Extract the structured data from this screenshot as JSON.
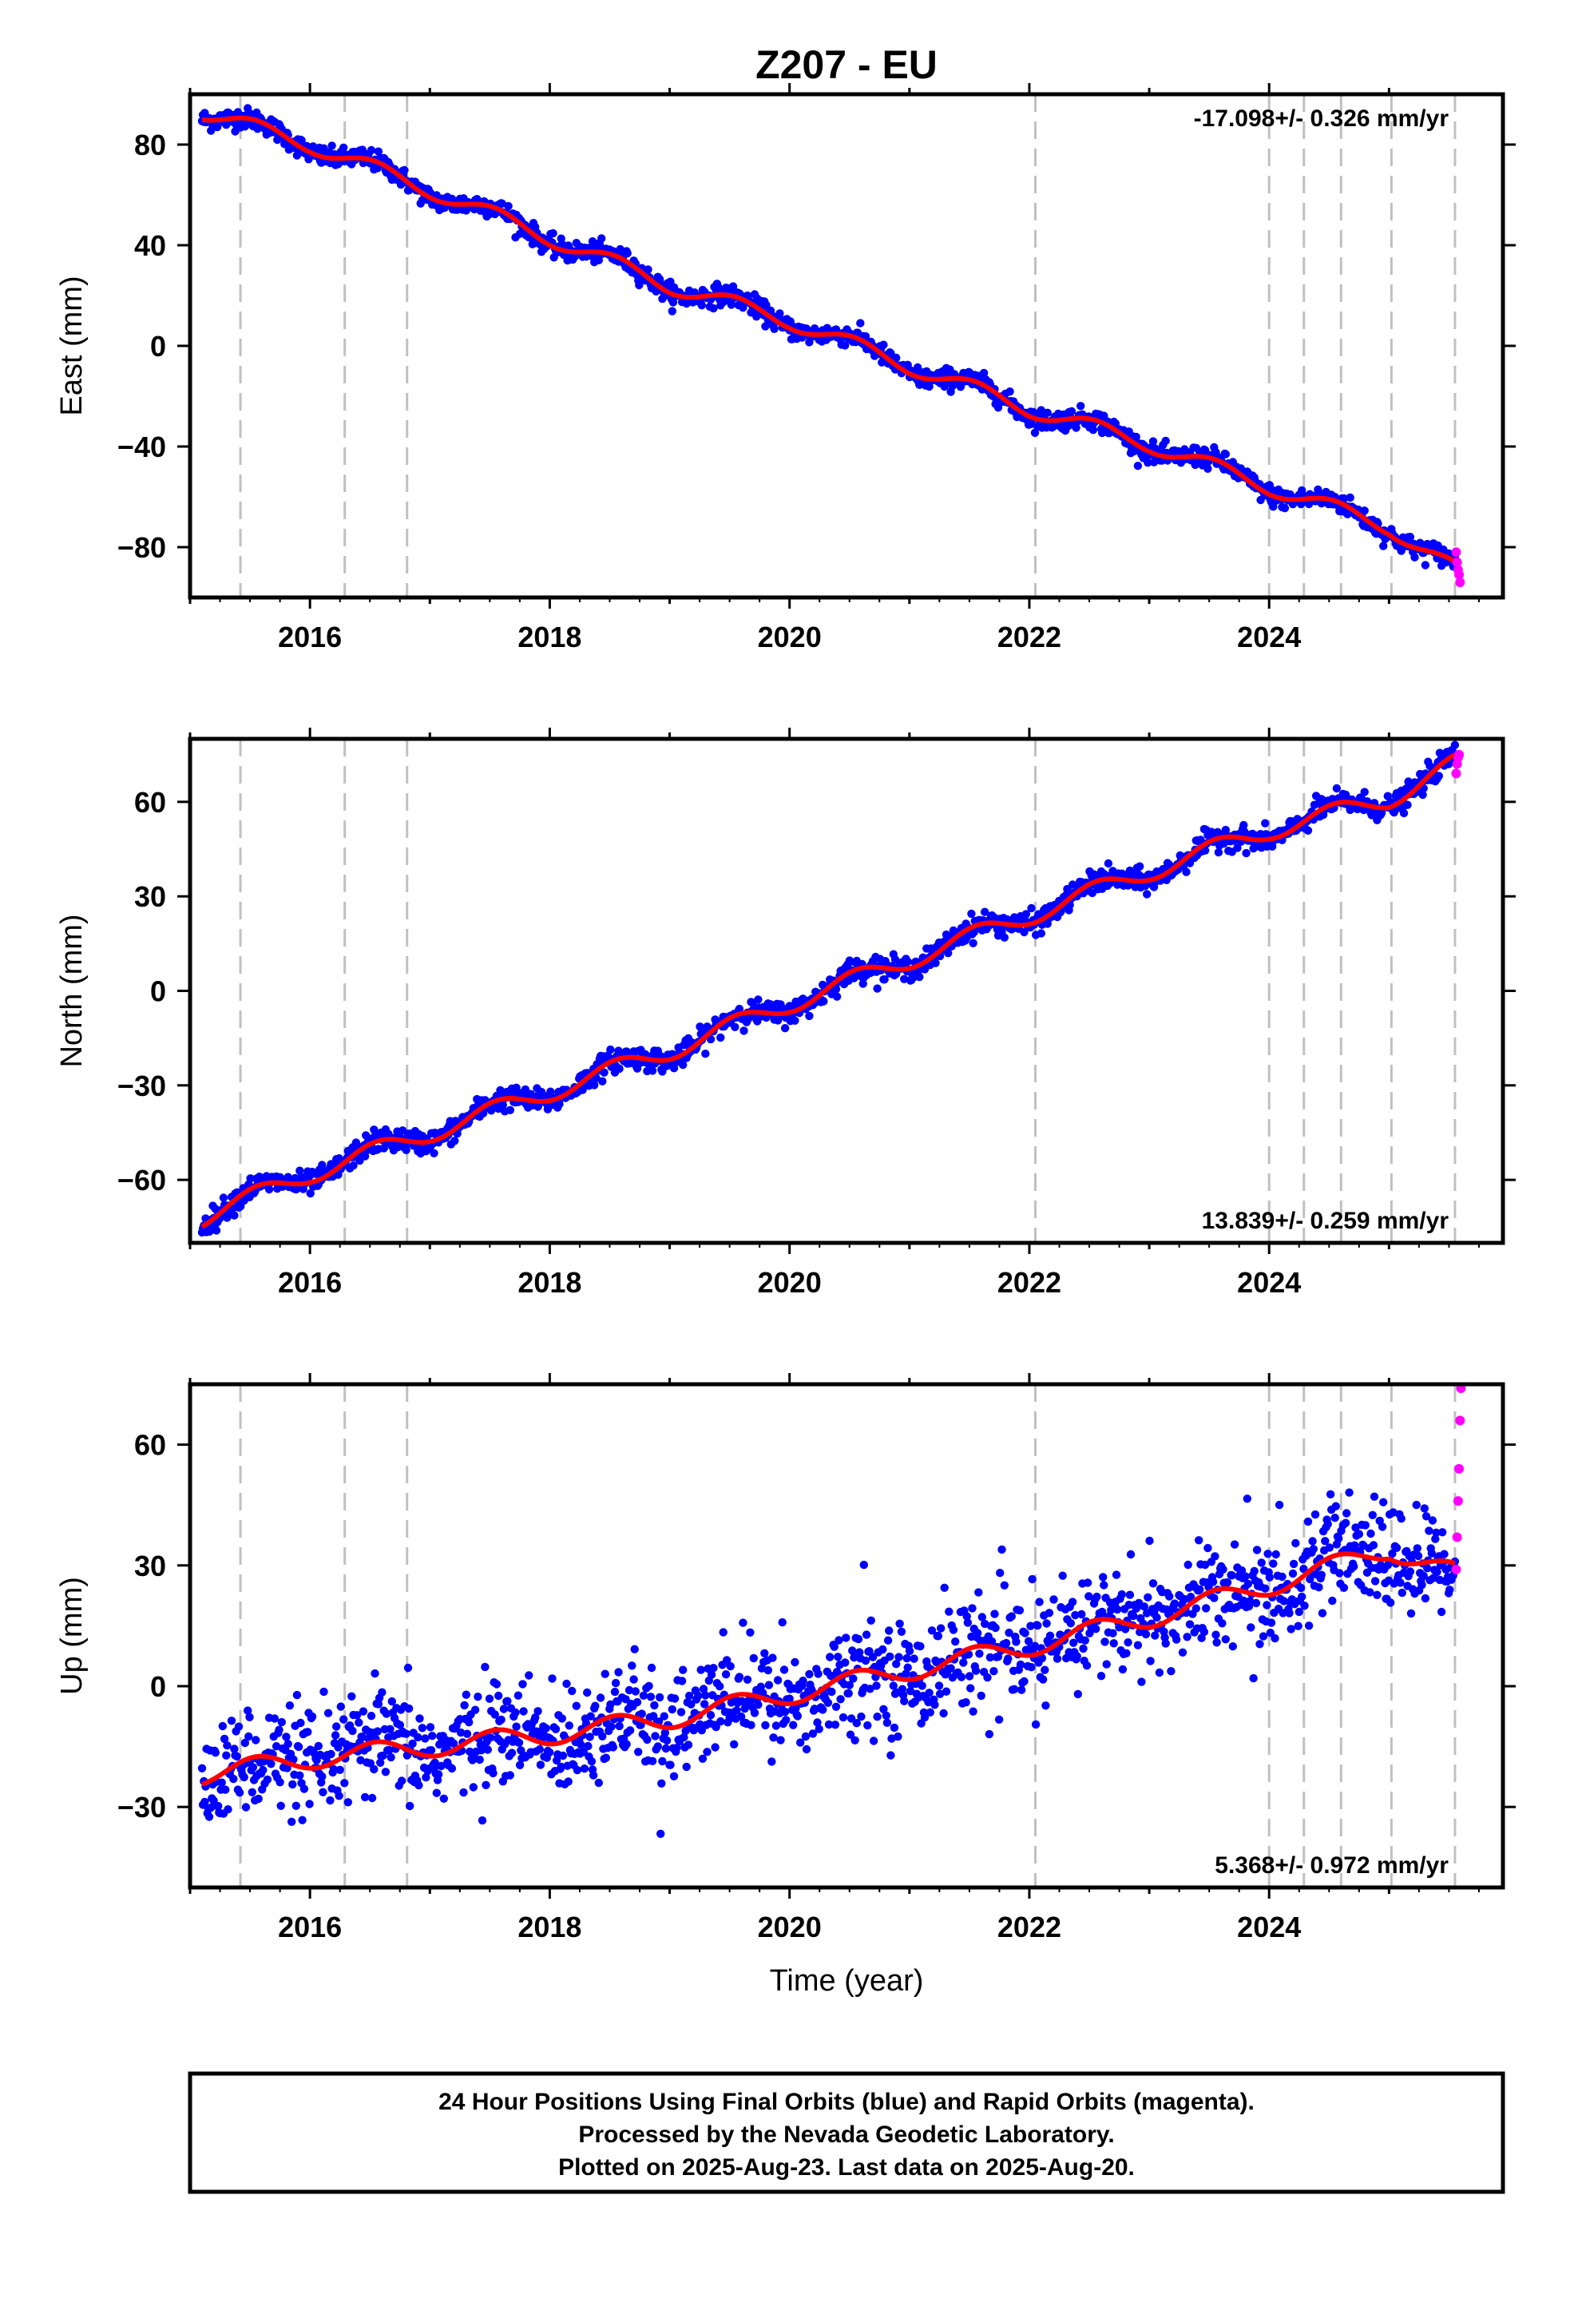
{
  "title": "Z207 - EU",
  "xlabel": "Time (year)",
  "footer": {
    "line1": "24 Hour Positions Using Final Orbits (blue) and Rapid Orbits (magenta).",
    "line2": "Processed by the Nevada Geodetic Laboratory.",
    "line3": "Plotted on 2025-Aug-23. Last data on 2025-Aug-20."
  },
  "colors": {
    "final": "#0000ff",
    "rapid": "#ff00ff",
    "model": "#ff0000",
    "steps": "#c0c0c0"
  },
  "chart_data": [
    {
      "type": "scatter",
      "component": "east",
      "ylabel": "East (mm)",
      "rate_label": "-17.098+/- 0.326 mm/yr",
      "rate_position": "top-right",
      "xlim": [
        2015.0,
        2025.95
      ],
      "ylim": [
        -100,
        100
      ],
      "xticks": [
        2016,
        2018,
        2020,
        2022,
        2024
      ],
      "yticks": [
        80,
        40,
        0,
        -40,
        -80
      ],
      "ytick_labels": [
        "80",
        "40",
        "0",
        "−40",
        "−80"
      ],
      "rate_mm_yr": -17.098,
      "anchor": {
        "t": 2015.1,
        "v": 93
      },
      "seasonal_amplitude": 3.2,
      "noise": 2.0,
      "rapid_values": [
        -82,
        -86,
        -89,
        -91,
        -94
      ],
      "series": [
        {
          "name": "Final Orbits",
          "x": [
            2015.1,
            2016.0,
            2017.0,
            2018.0,
            2019.0,
            2020.0,
            2021.0,
            2022.0,
            2023.0,
            2024.0,
            2025.0,
            2025.55
          ],
          "y": [
            93,
            80,
            62,
            43,
            24,
            10,
            -8,
            -25,
            -39,
            -56,
            -72,
            -89
          ]
        }
      ]
    },
    {
      "type": "scatter",
      "component": "north",
      "ylabel": "North (mm)",
      "rate_label": "13.839+/- 0.259 mm/yr",
      "rate_position": "bottom-right",
      "xlim": [
        2015.0,
        2025.95
      ],
      "ylim": [
        -80,
        80
      ],
      "xticks": [
        2016,
        2018,
        2020,
        2022,
        2024
      ],
      "yticks": [
        60,
        30,
        0,
        -30,
        -60
      ],
      "ytick_labels": [
        "60",
        "30",
        "0",
        "−30",
        "−60"
      ],
      "rate_mm_yr": 13.839,
      "anchor": {
        "t": 2015.1,
        "v": -72
      },
      "seasonal_amplitude": 3.0,
      "noise": 1.8,
      "rapid_values": [
        69,
        72,
        74,
        75
      ],
      "series": [
        {
          "name": "Final Orbits",
          "x": [
            2015.1,
            2016.0,
            2017.0,
            2018.0,
            2019.0,
            2020.0,
            2021.0,
            2022.0,
            2023.0,
            2024.0,
            2025.0,
            2025.55
          ],
          "y": [
            -72,
            -58,
            -45,
            -32,
            -19,
            -4,
            10,
            24,
            38,
            51,
            61,
            72
          ]
        }
      ]
    },
    {
      "type": "scatter",
      "component": "up",
      "ylabel": "Up (mm)",
      "rate_label": "5.368+/- 0.972 mm/yr",
      "rate_position": "bottom-right",
      "xlim": [
        2015.0,
        2025.95
      ],
      "ylim": [
        -50,
        75
      ],
      "xticks": [
        2016,
        2018,
        2020,
        2022,
        2024
      ],
      "yticks": [
        60,
        30,
        0,
        -30
      ],
      "ytick_labels": [
        "60",
        "30",
        "0",
        "−30"
      ],
      "rate_mm_yr": 5.368,
      "anchor": {
        "t": 2015.1,
        "v": -22
      },
      "seasonal_amplitude": 2.5,
      "noise": 6.5,
      "rapid_values": [
        29,
        37,
        46,
        54,
        66,
        74
      ],
      "series": [
        {
          "name": "Final Orbits",
          "x": [
            2015.1,
            2016.0,
            2017.0,
            2018.0,
            2019.0,
            2020.0,
            2021.0,
            2022.0,
            2023.0,
            2024.0,
            2025.0,
            2025.55
          ],
          "y": [
            -22,
            -18,
            -15,
            -12,
            -8,
            -2,
            4,
            10,
            17,
            25,
            34,
            28
          ]
        }
      ]
    }
  ],
  "equipment_changes": [
    2015.42,
    2016.29,
    2016.81,
    2022.05,
    2024.0,
    2024.29,
    2024.6,
    2025.02,
    2025.55
  ]
}
